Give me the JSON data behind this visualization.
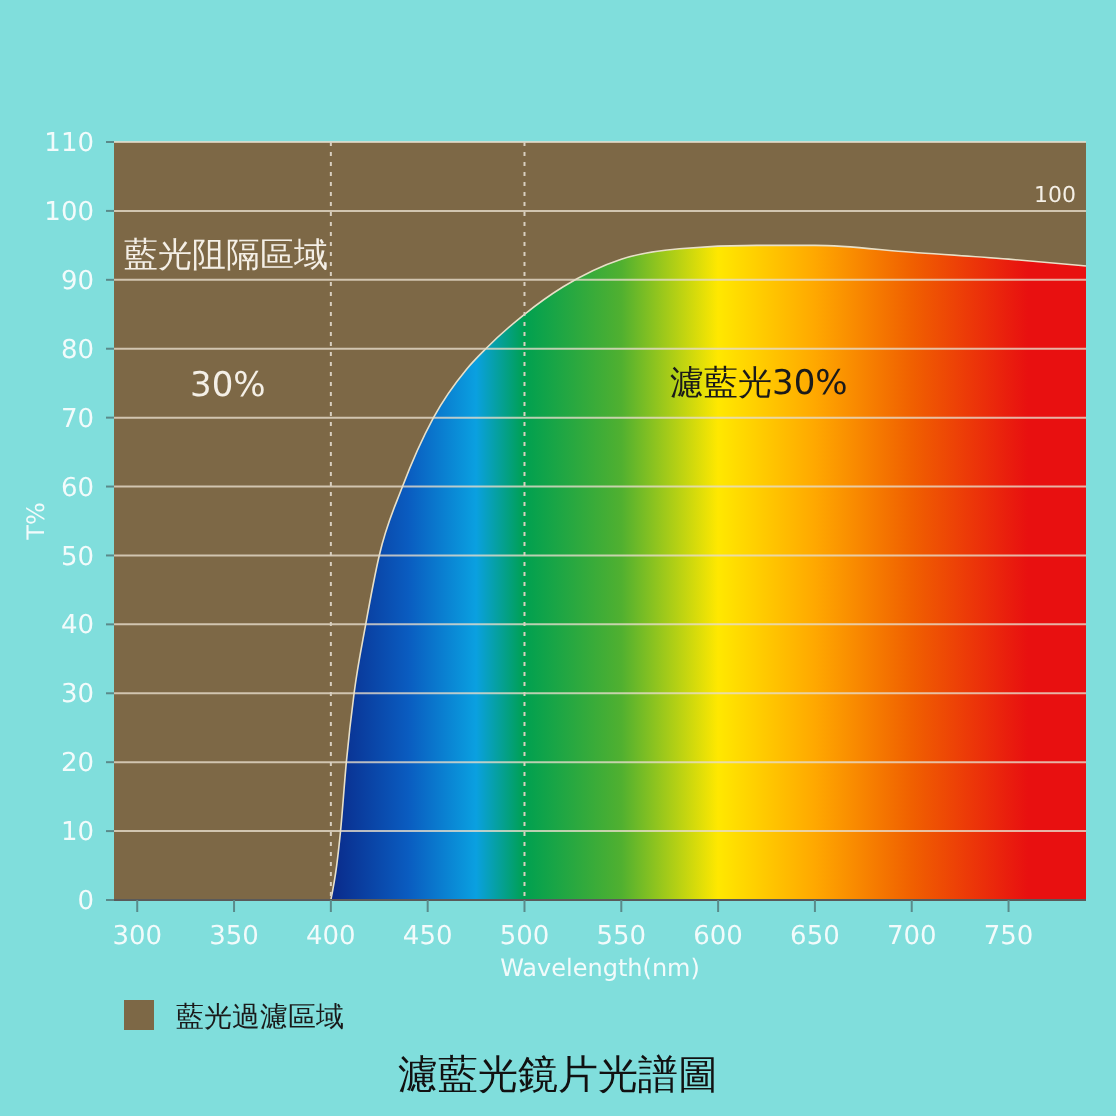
{
  "chart_data": {
    "type": "area",
    "title": "濾藍光鏡片光譜圖",
    "xlabel": "Wavelength(nm)",
    "ylabel": "T%",
    "x": [
      400,
      403,
      405,
      408,
      412,
      418,
      425,
      437,
      453,
      470,
      480,
      500,
      520,
      550,
      580,
      620,
      650,
      700,
      750,
      790
    ],
    "series": [
      {
        "values": [
          0,
          5,
          10,
          20,
          30,
          40,
          50,
          60,
          70,
          77,
          80,
          85,
          89,
          93,
          94.5,
          95,
          95,
          94,
          93,
          92
        ]
      }
    ],
    "xlim": [
      288,
      790
    ],
    "xticks": [
      300,
      350,
      400,
      450,
      500,
      550,
      600,
      650,
      700,
      750
    ],
    "ylim": [
      0,
      110
    ],
    "yticks": [
      0,
      10,
      20,
      30,
      40,
      50,
      60,
      70,
      80,
      90,
      100,
      110
    ],
    "grid": "y",
    "legend": "bottom left",
    "bands": [
      {
        "axis": "x",
        "from": 288,
        "to": 790,
        "label": "藍光過濾區域",
        "color": "#7d6846"
      }
    ],
    "ref_lines": [
      {
        "axis": "x",
        "value": 400,
        "line_style": "dotted",
        "color": "#d8cfc0"
      },
      {
        "axis": "x",
        "value": 500,
        "line_style": "dotted",
        "color": "#d8cfc0"
      }
    ],
    "annotations": [
      "藍光阻隔區域",
      "30%",
      "濾藍光30%",
      "100"
    ]
  }
}
